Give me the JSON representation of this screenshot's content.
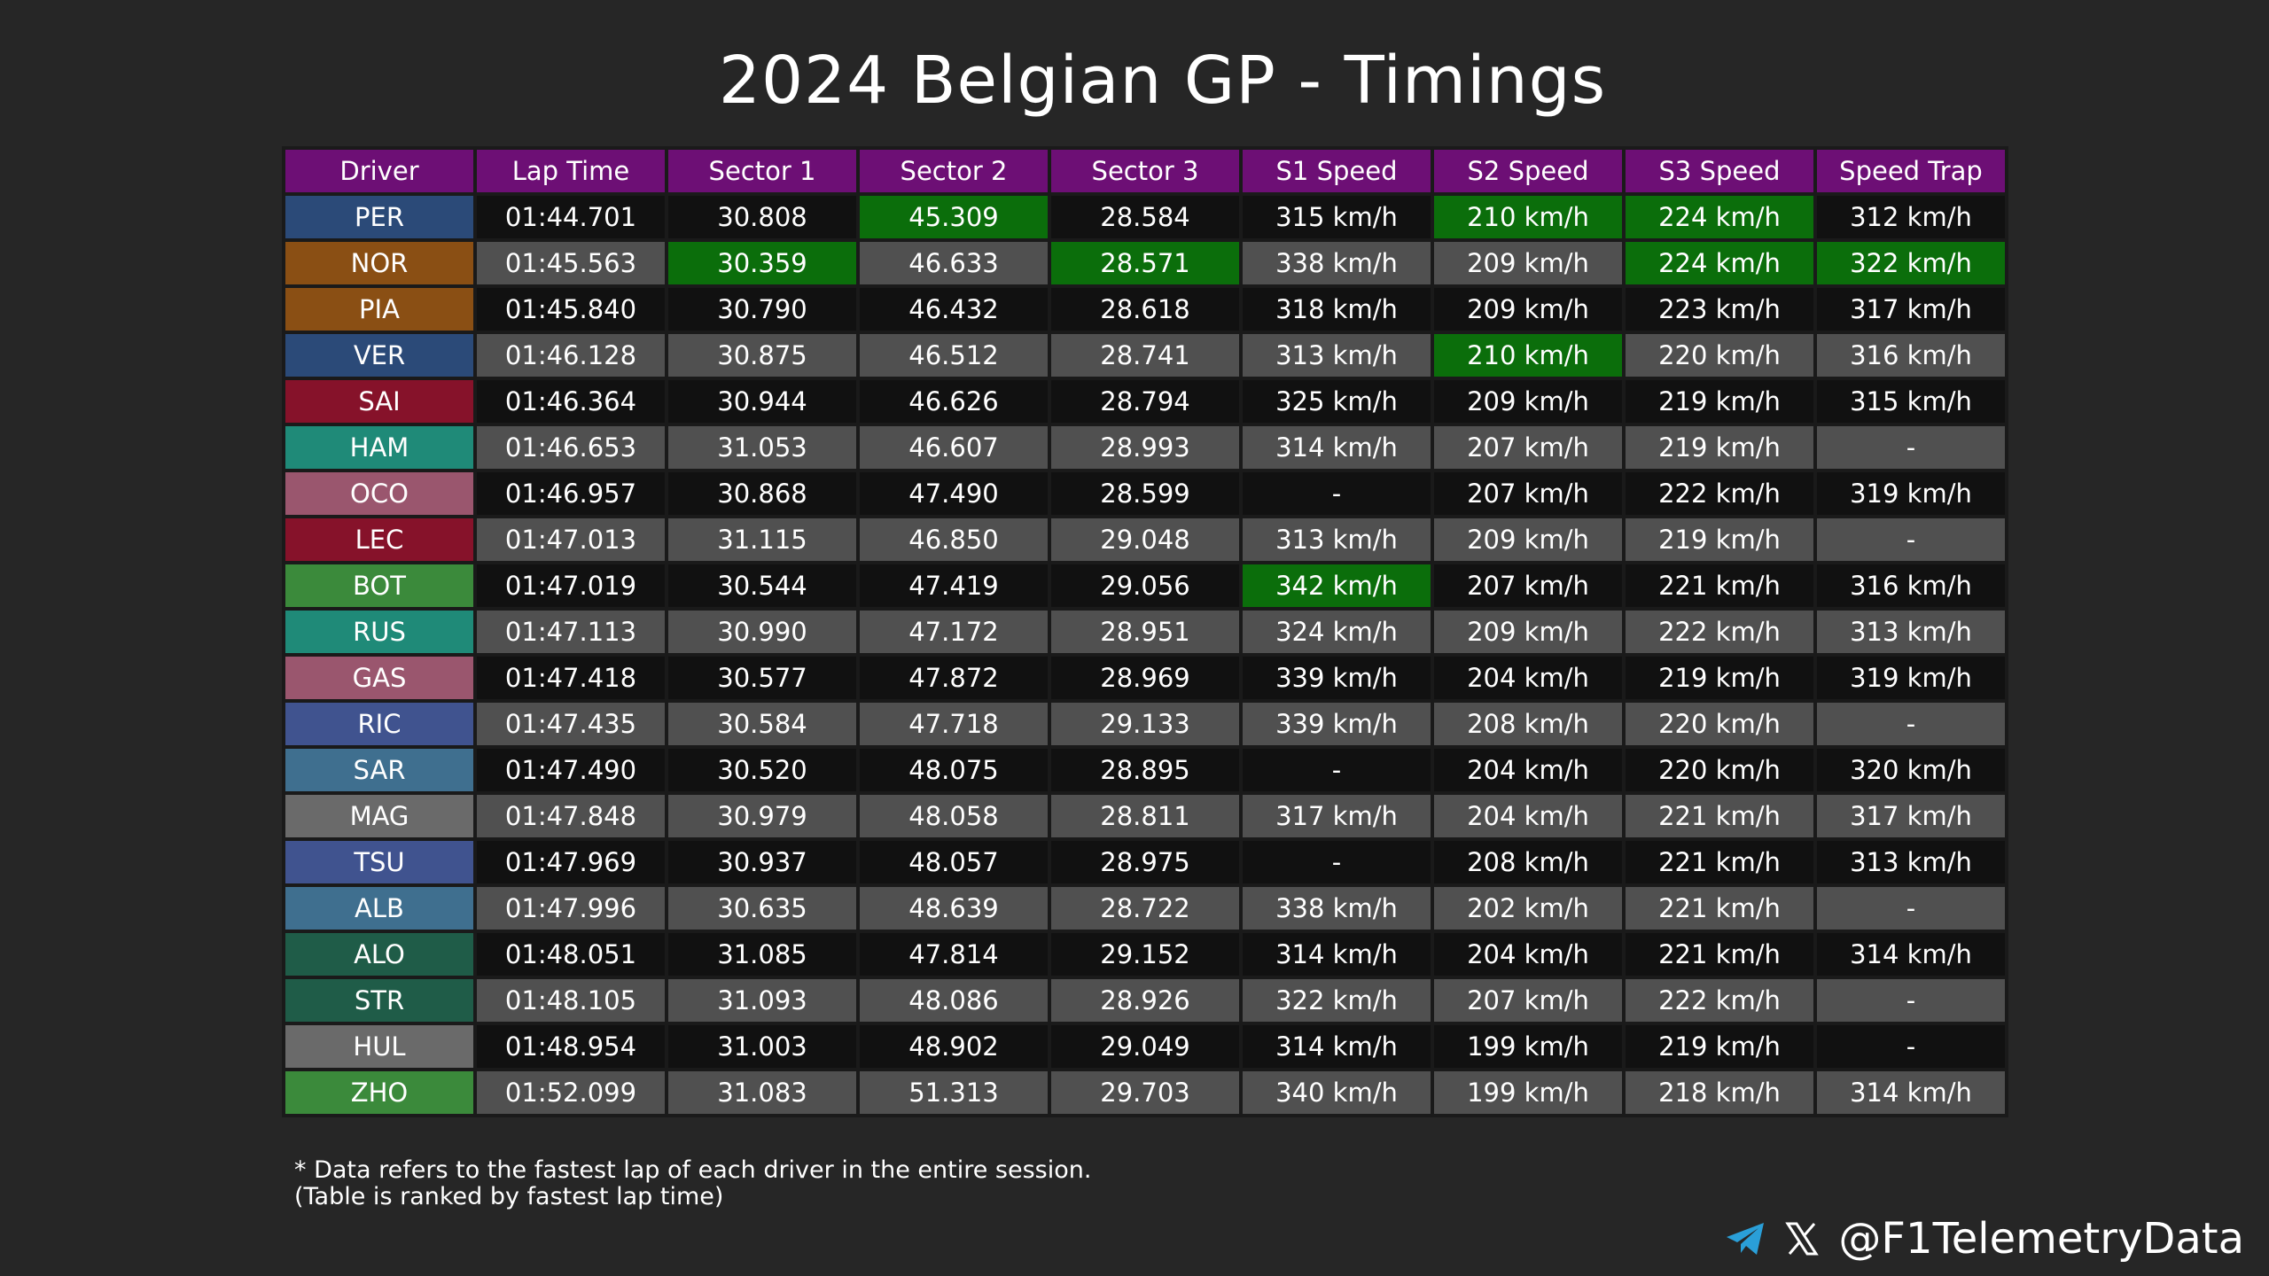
{
  "title": "2024 Belgian GP - Timings",
  "watermark": "@F1TelemetryData",
  "footnote_line1": "* Data refers to the fastest lap of each driver in the entire session.",
  "footnote_line2": "(Table is ranked by fastest lap time)",
  "handle": "@F1TelemetryData",
  "icons": [
    "telegram-icon",
    "x-icon"
  ],
  "colors": {
    "header": "#6d0f75",
    "best": "#0b6e0b",
    "row_dark": "#111111",
    "row_light": "#505050",
    "background": "#262626"
  },
  "chart_data": {
    "type": "table",
    "title": "2024 Belgian GP - Timings",
    "columns": [
      "Driver",
      "Lap Time",
      "Sector 1",
      "Sector 2",
      "Sector 3",
      "S1 Speed",
      "S2 Speed",
      "S3 Speed",
      "Speed Trap"
    ],
    "rows": [
      {
        "driver": "PER",
        "color": "#2b4a78",
        "cells": [
          "01:44.701",
          "30.808",
          "45.309",
          "28.584",
          "315 km/h",
          "210 km/h",
          "224 km/h",
          "312 km/h"
        ],
        "best": [
          2,
          5,
          6
        ]
      },
      {
        "driver": "NOR",
        "color": "#8a4f14",
        "cells": [
          "01:45.563",
          "30.359",
          "46.633",
          "28.571",
          "338 km/h",
          "209 km/h",
          "224 km/h",
          "322 km/h"
        ],
        "best": [
          1,
          3,
          6,
          7
        ]
      },
      {
        "driver": "PIA",
        "color": "#8a4f14",
        "cells": [
          "01:45.840",
          "30.790",
          "46.432",
          "28.618",
          "318 km/h",
          "209 km/h",
          "223 km/h",
          "317 km/h"
        ],
        "best": []
      },
      {
        "driver": "VER",
        "color": "#2b4a78",
        "cells": [
          "01:46.128",
          "30.875",
          "46.512",
          "28.741",
          "313 km/h",
          "210 km/h",
          "220 km/h",
          "316 km/h"
        ],
        "best": [
          5
        ]
      },
      {
        "driver": "SAI",
        "color": "#86122a",
        "cells": [
          "01:46.364",
          "30.944",
          "46.626",
          "28.794",
          "325 km/h",
          "209 km/h",
          "219 km/h",
          "315 km/h"
        ],
        "best": []
      },
      {
        "driver": "HAM",
        "color": "#1f8a78",
        "cells": [
          "01:46.653",
          "31.053",
          "46.607",
          "28.993",
          "314 km/h",
          "207 km/h",
          "219 km/h",
          "-"
        ],
        "best": []
      },
      {
        "driver": "OCO",
        "color": "#9a566e",
        "cells": [
          "01:46.957",
          "30.868",
          "47.490",
          "28.599",
          "-",
          "207 km/h",
          "222 km/h",
          "319 km/h"
        ],
        "best": []
      },
      {
        "driver": "LEC",
        "color": "#86122a",
        "cells": [
          "01:47.013",
          "31.115",
          "46.850",
          "29.048",
          "313 km/h",
          "209 km/h",
          "219 km/h",
          "-"
        ],
        "best": []
      },
      {
        "driver": "BOT",
        "color": "#3b8a3b",
        "cells": [
          "01:47.019",
          "30.544",
          "47.419",
          "29.056",
          "342 km/h",
          "207 km/h",
          "221 km/h",
          "316 km/h"
        ],
        "best": [
          4
        ]
      },
      {
        "driver": "RUS",
        "color": "#1f8a78",
        "cells": [
          "01:47.113",
          "30.990",
          "47.172",
          "28.951",
          "324 km/h",
          "209 km/h",
          "222 km/h",
          "313 km/h"
        ],
        "best": []
      },
      {
        "driver": "GAS",
        "color": "#9a566e",
        "cells": [
          "01:47.418",
          "30.577",
          "47.872",
          "28.969",
          "339 km/h",
          "204 km/h",
          "219 km/h",
          "319 km/h"
        ],
        "best": []
      },
      {
        "driver": "RIC",
        "color": "#40538f",
        "cells": [
          "01:47.435",
          "30.584",
          "47.718",
          "29.133",
          "339 km/h",
          "208 km/h",
          "220 km/h",
          "-"
        ],
        "best": []
      },
      {
        "driver": "SAR",
        "color": "#3f6f8f",
        "cells": [
          "01:47.490",
          "30.520",
          "48.075",
          "28.895",
          "-",
          "204 km/h",
          "220 km/h",
          "320 km/h"
        ],
        "best": []
      },
      {
        "driver": "MAG",
        "color": "#6a6a6a",
        "cells": [
          "01:47.848",
          "30.979",
          "48.058",
          "28.811",
          "317 km/h",
          "204 km/h",
          "221 km/h",
          "317 km/h"
        ],
        "best": []
      },
      {
        "driver": "TSU",
        "color": "#40538f",
        "cells": [
          "01:47.969",
          "30.937",
          "48.057",
          "28.975",
          "-",
          "208 km/h",
          "221 km/h",
          "313 km/h"
        ],
        "best": []
      },
      {
        "driver": "ALB",
        "color": "#3f6f8f",
        "cells": [
          "01:47.996",
          "30.635",
          "48.639",
          "28.722",
          "338 km/h",
          "202 km/h",
          "221 km/h",
          "-"
        ],
        "best": []
      },
      {
        "driver": "ALO",
        "color": "#1f5c48",
        "cells": [
          "01:48.051",
          "31.085",
          "47.814",
          "29.152",
          "314 km/h",
          "204 km/h",
          "221 km/h",
          "314 km/h"
        ],
        "best": []
      },
      {
        "driver": "STR",
        "color": "#1f5c48",
        "cells": [
          "01:48.105",
          "31.093",
          "48.086",
          "28.926",
          "322 km/h",
          "207 km/h",
          "222 km/h",
          "-"
        ],
        "best": []
      },
      {
        "driver": "HUL",
        "color": "#6a6a6a",
        "cells": [
          "01:48.954",
          "31.003",
          "48.902",
          "29.049",
          "314 km/h",
          "199 km/h",
          "219 km/h",
          "-"
        ],
        "best": []
      },
      {
        "driver": "ZHO",
        "color": "#3b8a3b",
        "cells": [
          "01:52.099",
          "31.083",
          "51.313",
          "29.703",
          "340 km/h",
          "199 km/h",
          "218 km/h",
          "314 km/h"
        ],
        "best": []
      }
    ]
  }
}
